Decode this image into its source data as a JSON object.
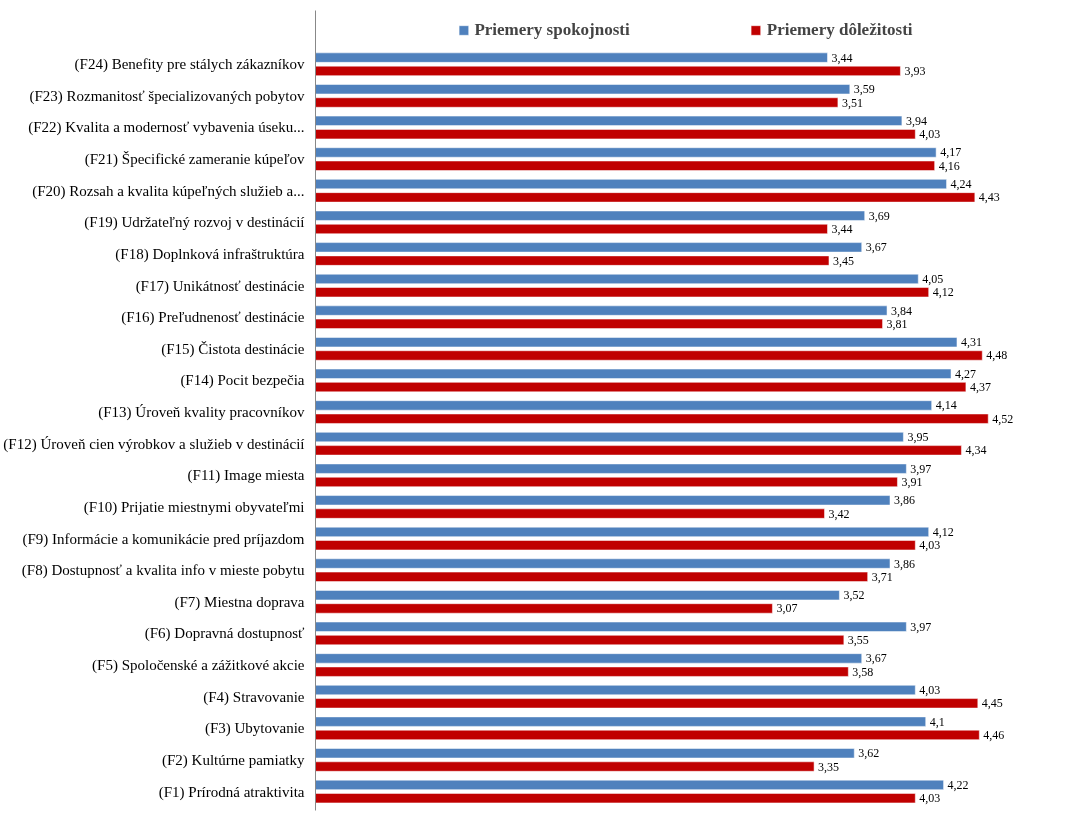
{
  "chart_data": {
    "type": "bar",
    "orientation": "horizontal",
    "legend": "top",
    "grid": false,
    "tick_labels": "y",
    "categories": [
      "(F24) Benefity pre stálych zákazníkov",
      "(F23) Rozmanitosť špecializovaných pobytov",
      "(F22) Kvalita a modernosť vybavenia úseku...",
      "(F21) Špecifické zameranie kúpeľov",
      "(F20) Rozsah a kvalita kúpeľných služieb a...",
      "(F19) Udržateľný rozvoj v destinácií",
      "(F18) Doplnková infraštruktúra",
      "(F17) Unikátnosť destinácie",
      "(F16) Preľudnenosť destinácie",
      "(F15) Čistota destinácie",
      "(F14) Pocit bezpečia",
      "(F13) Úroveň kvality pracovníkov",
      "(F12) Úroveň cien výrobkov a služieb v destinácií",
      "(F11) Image miesta",
      "(F10) Prijatie miestnymi obyvateľmi",
      "(F9) Informácie a komunikácie pred príjazdom",
      "(F8) Dostupnosť a kvalita info v mieste pobytu",
      "(F7) Miestna doprava",
      "(F6) Dopravná dostupnosť",
      "(F5) Spoločenské a zážitkové akcie",
      "(F4) Stravovanie",
      "(F3) Ubytovanie",
      "(F2) Kultúrne pamiatky",
      "(F1) Prírodná atraktivita"
    ],
    "series": [
      {
        "name": "Priemery spokojnosti",
        "color": "#4f81bd",
        "values": [
          3.44,
          3.59,
          3.94,
          4.17,
          4.24,
          3.69,
          3.67,
          4.05,
          3.84,
          4.31,
          4.27,
          4.14,
          3.95,
          3.97,
          3.86,
          4.12,
          3.86,
          3.52,
          3.97,
          3.67,
          4.03,
          4.1,
          3.62,
          4.22
        ],
        "value_labels": [
          "3,44",
          "3,59",
          "3,94",
          "4,17",
          "4,24",
          "3,69",
          "3,67",
          "4,05",
          "3,84",
          "4,31",
          "4,27",
          "4,14",
          "3,95",
          "3,97",
          "3,86",
          "4,12",
          "3,86",
          "3,52",
          "3,97",
          "3,67",
          "4,03",
          "4,1",
          "3,62",
          "4,22"
        ]
      },
      {
        "name": "Priemery dôležitosti",
        "color": "#c00000",
        "values": [
          3.93,
          3.51,
          4.03,
          4.16,
          4.43,
          3.44,
          3.45,
          4.12,
          3.81,
          4.48,
          4.37,
          4.52,
          4.34,
          3.91,
          3.42,
          4.03,
          3.71,
          3.07,
          3.55,
          3.58,
          4.45,
          4.46,
          3.35,
          4.03
        ],
        "value_labels": [
          "3,93",
          "3,51",
          "4,03",
          "4,16",
          "4,43",
          "3,44",
          "3,45",
          "4,12",
          "3,81",
          "4,48",
          "4,37",
          "4,52",
          "4,34",
          "3,91",
          "3,42",
          "4,03",
          "3,71",
          "3,07",
          "3,55",
          "3,58",
          "4,45",
          "4,46",
          "3,35",
          "4,03"
        ]
      }
    ]
  }
}
